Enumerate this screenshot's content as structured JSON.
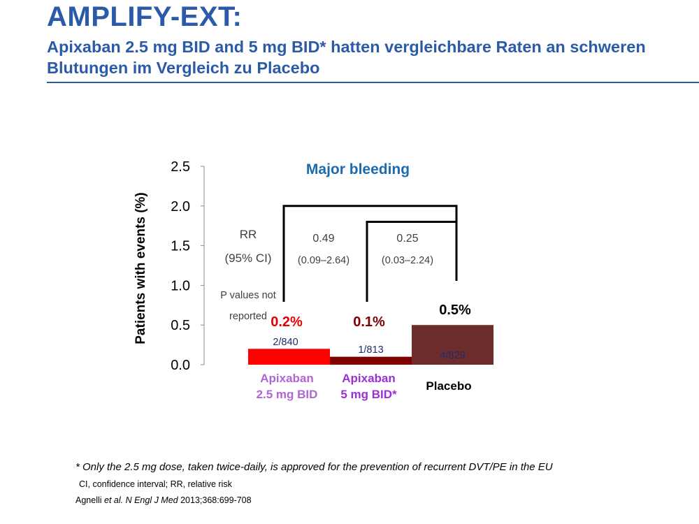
{
  "slide": {
    "title": "AMPLIFY-EXT:",
    "subtitle": "Apixaban 2.5 mg BID and 5 mg BID* hatten vergleichbare Raten an schweren Blutungen im Vergleich zu Placebo",
    "footnote": "* Only the 2.5 mg dose, taken twice-daily, is approved for the prevention of recurrent DVT/PE in the EU",
    "abbreviations": "CI, confidence interval; RR, relative risk",
    "citation": {
      "authors": "Agnelli ",
      "etal": "et al.",
      "journal": " N Engl J Med",
      "rest": " 2013;368:699-708"
    }
  },
  "chart_data": {
    "type": "bar",
    "title": "Major bleeding",
    "ylabel": "Patients with events (%)",
    "ylim": [
      0,
      2.5
    ],
    "yticks": [
      "0.0",
      "0.5",
      "1.0",
      "1.5",
      "2.0",
      "2.5"
    ],
    "categories": [
      [
        "Apixaban",
        "2.5 mg BID"
      ],
      [
        "Apixaban",
        "5 mg BID*"
      ],
      [
        "Placebo"
      ]
    ],
    "values": [
      0.2,
      0.1,
      0.5
    ],
    "value_labels": [
      "0.2%",
      "0.1%",
      "0.5%"
    ],
    "event_counts": [
      "2/840",
      "1/813",
      "4/829"
    ],
    "colors": {
      "bars": [
        "#ff0000",
        "#7f0000",
        "#6e2d2d"
      ],
      "value_labels": [
        "#e60000",
        "#7f0000",
        "#000000"
      ],
      "category_labels": [
        "#b065d6",
        "#9b2fd6",
        "#000000"
      ],
      "counts": [
        "#1f2d6b",
        "#1f2d6b",
        "#1f2d6b"
      ],
      "title": "#1a6bb0",
      "stats": "#404040"
    },
    "stats_header": {
      "rr": "RR",
      "ci": "(95% CI)",
      "p1": "P values not",
      "p2": "reported"
    },
    "comparisons": [
      {
        "from": 0,
        "to": 2,
        "level": 2.0,
        "rr": "0.49",
        "ci": "(0.09–2.64)"
      },
      {
        "from": 1,
        "to": 2,
        "level": 1.8,
        "rr": "0.25",
        "ci": "(0.03–2.24)"
      }
    ]
  }
}
